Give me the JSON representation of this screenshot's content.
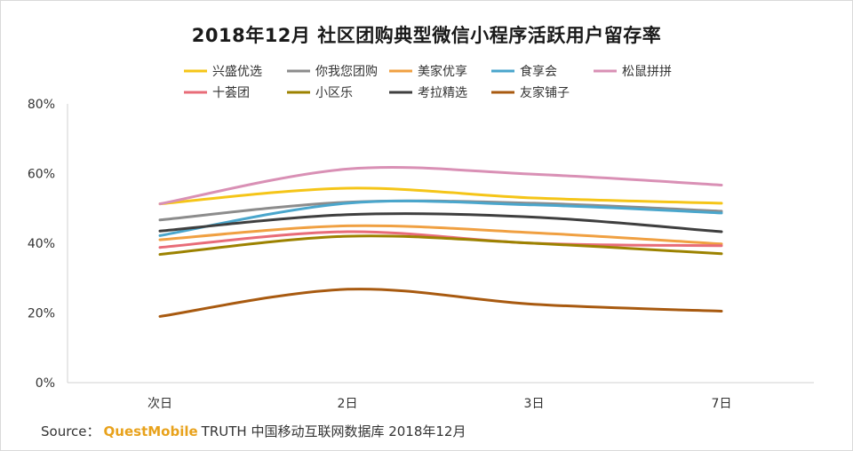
{
  "chart_data": {
    "type": "line",
    "title": "2018年12月 社区团购典型微信小程序活跃用户留存率",
    "categories": [
      "次日",
      "2日",
      "3日",
      "7日"
    ],
    "y_ticks": [
      "0%",
      "20%",
      "40%",
      "60%",
      "80%"
    ],
    "ylim": [
      0,
      80
    ],
    "y_unit": "%",
    "grid": false,
    "legend_position": "top",
    "series": [
      {
        "name": "兴盛优选",
        "color": "#f5c518",
        "values": [
          51.3,
          55.8,
          53.0,
          51.5
        ]
      },
      {
        "name": "你我您团购",
        "color": "#8c8c8c",
        "values": [
          46.7,
          51.8,
          51.5,
          49.2
        ]
      },
      {
        "name": "美家优享",
        "color": "#f0a042",
        "values": [
          41.0,
          45.0,
          43.0,
          39.8
        ]
      },
      {
        "name": "食享会",
        "color": "#4aa6cc",
        "values": [
          42.2,
          51.5,
          51.0,
          48.7
        ]
      },
      {
        "name": "松鼠拼拼",
        "color": "#d990b5",
        "values": [
          51.3,
          61.3,
          59.8,
          56.7
        ]
      },
      {
        "name": "十荟团",
        "color": "#e86c78",
        "values": [
          38.8,
          43.3,
          40.0,
          39.3
        ]
      },
      {
        "name": "小区乐",
        "color": "#9c8200",
        "values": [
          36.8,
          42.0,
          40.0,
          37.0
        ]
      },
      {
        "name": "考拉精选",
        "color": "#3f3f3f",
        "values": [
          43.5,
          48.2,
          47.5,
          43.3
        ]
      },
      {
        "name": "友家铺子",
        "color": "#a85a10",
        "values": [
          19.0,
          26.8,
          22.5,
          20.5
        ]
      }
    ]
  },
  "source": {
    "prefix": "Source：",
    "brand": "QuestMobile",
    "suffix": "TRUTH 中国移动互联网数据库 2018年12月"
  }
}
